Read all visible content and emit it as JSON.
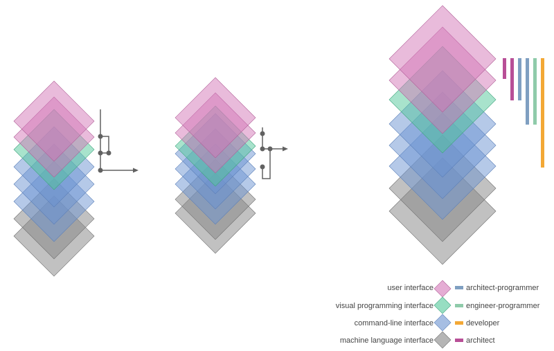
{
  "colors": {
    "user_interface": "#d477b7",
    "visual_programming_interface": "#52c89a",
    "command_line_interface": "#6b93d1",
    "machine_language_interface": "#848484",
    "architect_programmer": "#7f9fc1",
    "engineer_programmer": "#8fcbaa",
    "developer": "#f3a835",
    "architect": "#b84f97",
    "connector": "#616161"
  },
  "legend": {
    "layers": [
      {
        "label": "user interface",
        "color_key": "user_interface"
      },
      {
        "label": "visual programming interface",
        "color_key": "visual_programming_interface"
      },
      {
        "label": "command-line interface",
        "color_key": "command_line_interface"
      },
      {
        "label": "machine language interface",
        "color_key": "machine_language_interface"
      }
    ],
    "roles": [
      {
        "label": "architect-programmer",
        "color_key": "architect_programmer"
      },
      {
        "label": "engineer-programmer",
        "color_key": "engineer_programmer"
      },
      {
        "label": "developer",
        "color_key": "developer"
      },
      {
        "label": "architect",
        "color_key": "architect"
      }
    ]
  }
}
